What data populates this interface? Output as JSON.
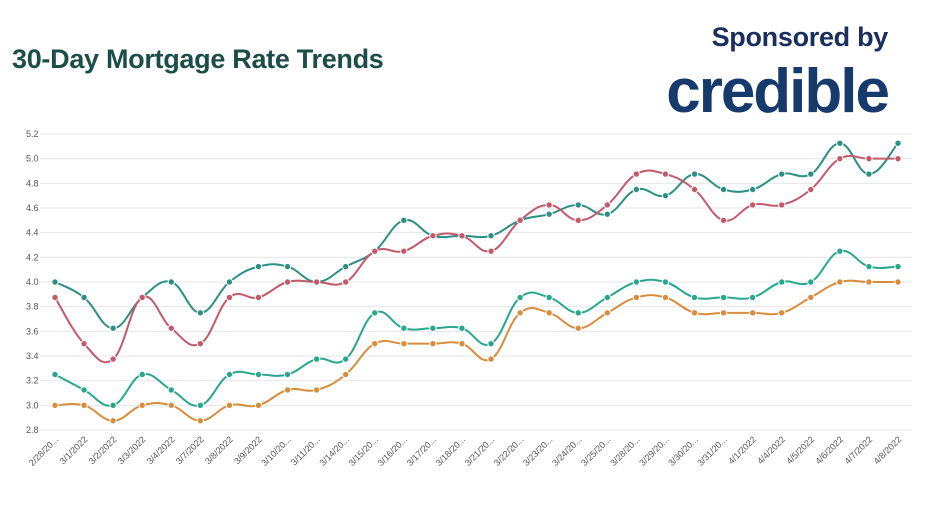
{
  "header": {
    "title": "30-Day Mortgage Rate Trends",
    "sponsor_text": "Sponsored by",
    "logo_text": "credible"
  },
  "colors": {
    "title": "#1d4d48",
    "logo": "#153a6b",
    "grid": "#e6e6e6"
  },
  "chart_data": {
    "type": "line",
    "title": "30-Day Mortgage Rate Trends",
    "xlabel": "",
    "ylabel": "",
    "ylim": [
      2.8,
      5.2
    ],
    "yticks": [
      "2.8",
      "3.0",
      "3.2",
      "3.4",
      "3.6",
      "3.8",
      "4.0",
      "4.2",
      "4.4",
      "4.6",
      "4.8",
      "5.0",
      "5.2"
    ],
    "grid": true,
    "legend": "none",
    "x": [
      "2/28/20...",
      "3/1/2022",
      "3/2/2022",
      "3/3/2022",
      "3/4/2022",
      "3/7/2022",
      "3/8/2022",
      "3/9/2022",
      "3/10/20...",
      "3/11/20...",
      "3/14/20...",
      "3/15/20...",
      "3/16/20...",
      "3/17/20...",
      "3/18/20...",
      "3/21/20...",
      "3/22/20...",
      "3/23/20...",
      "3/24/20...",
      "3/25/20...",
      "3/28/20...",
      "3/29/20...",
      "3/30/20...",
      "3/31/20...",
      "4/1/2022",
      "4/4/2022",
      "4/5/2022",
      "4/6/2022",
      "4/7/2022",
      "4/8/2022"
    ],
    "series": [
      {
        "color": "#2b8f84",
        "values": [
          4.0,
          3.875,
          3.625,
          3.875,
          4.0,
          3.75,
          4.0,
          4.125,
          4.125,
          4.0,
          4.125,
          4.25,
          4.5,
          4.375,
          4.375,
          4.375,
          4.5,
          4.55,
          4.625,
          4.55,
          4.75,
          4.7,
          4.875,
          4.75,
          4.75,
          4.875,
          4.875,
          5.125,
          4.875,
          5.125
        ]
      },
      {
        "color": "#c25a6b",
        "values": [
          3.875,
          3.5,
          3.375,
          3.875,
          3.625,
          3.5,
          3.875,
          3.875,
          4.0,
          4.0,
          4.0,
          4.25,
          4.25,
          4.375,
          4.375,
          4.25,
          4.5,
          4.625,
          4.5,
          4.625,
          4.875,
          4.875,
          4.75,
          4.5,
          4.625,
          4.625,
          4.75,
          5.0,
          5.0,
          5.0
        ]
      },
      {
        "color": "#27a88e",
        "values": [
          3.25,
          3.125,
          3.0,
          3.25,
          3.125,
          3.0,
          3.25,
          3.25,
          3.25,
          3.375,
          3.375,
          3.75,
          3.625,
          3.625,
          3.625,
          3.5,
          3.875,
          3.875,
          3.75,
          3.875,
          4.0,
          4.0,
          3.875,
          3.875,
          3.875,
          4.0,
          4.0,
          4.25,
          4.125,
          4.125
        ]
      },
      {
        "color": "#d88c3c",
        "values": [
          3.0,
          3.0,
          2.875,
          3.0,
          3.0,
          2.875,
          3.0,
          3.0,
          3.125,
          3.125,
          3.25,
          3.5,
          3.5,
          3.5,
          3.5,
          3.375,
          3.75,
          3.75,
          3.625,
          3.75,
          3.875,
          3.875,
          3.75,
          3.75,
          3.75,
          3.75,
          3.875,
          4.0,
          4.0,
          4.0
        ]
      }
    ]
  }
}
